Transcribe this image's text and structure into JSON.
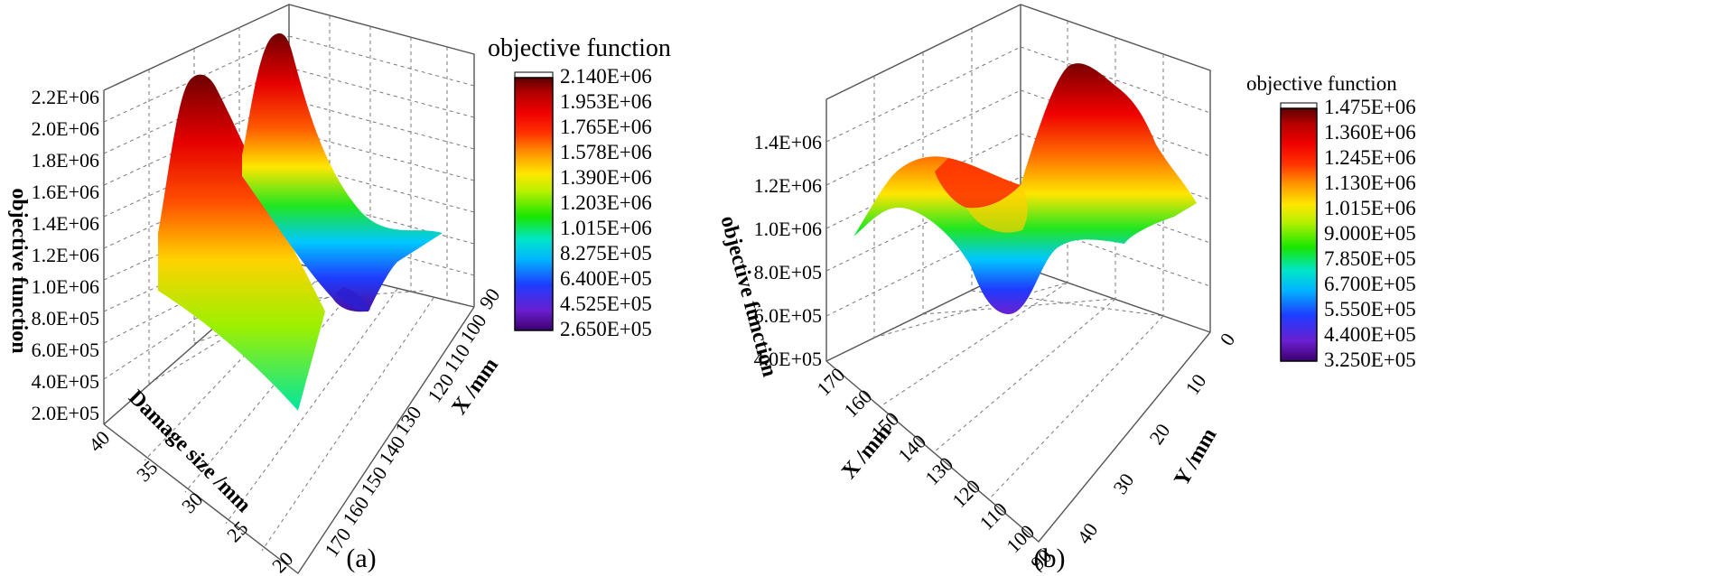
{
  "chart_data": [
    {
      "type": "surface",
      "caption": "(a)",
      "zlabel": "objective function",
      "xlabel": "X /mm",
      "ylabel": "Damage size /mm",
      "x_ticks": [
        "90",
        "100",
        "110",
        "120",
        "130",
        "140",
        "150",
        "160",
        "170"
      ],
      "y_ticks": [
        "40",
        "35",
        "30",
        "25",
        "20"
      ],
      "z_ticks": [
        "2.0E+05",
        "4.0E+05",
        "6.0E+05",
        "8.0E+05",
        "1.0E+06",
        "1.2E+06",
        "1.4E+06",
        "1.6E+06",
        "1.8E+06",
        "2.0E+06",
        "2.2E+06"
      ],
      "xlim": [
        90,
        170
      ],
      "ylim": [
        20,
        40
      ],
      "zlim": [
        200000,
        2200000
      ],
      "colorbar": {
        "title": "objective function",
        "ticks": [
          "2.140E+06",
          "1.953E+06",
          "1.765E+06",
          "1.578E+06",
          "1.390E+06",
          "1.203E+06",
          "1.015E+06",
          "8.275E+05",
          "6.400E+05",
          "4.525E+05",
          "2.650E+05"
        ],
        "range": [
          265000,
          2140000
        ]
      },
      "features": [
        {
          "x": 160,
          "y": 38,
          "z": 2050000,
          "kind": "peak"
        },
        {
          "x": 112,
          "y": 38,
          "z": 2140000,
          "kind": "peak"
        },
        {
          "x": 118,
          "y": 24,
          "z": 265000,
          "kind": "valley"
        }
      ],
      "grid": true
    },
    {
      "type": "surface",
      "caption": "(b)",
      "zlabel": "objective function",
      "xlabel": "X /mm",
      "ylabel": "Y /mm",
      "x_ticks": [
        "170",
        "160",
        "150",
        "140",
        "130",
        "120",
        "110",
        "100",
        "90"
      ],
      "y_ticks": [
        "0",
        "10",
        "20",
        "30",
        "40"
      ],
      "z_ticks": [
        "4.0E+05",
        "6.0E+05",
        "8.0E+05",
        "1.0E+06",
        "1.2E+06",
        "1.4E+06"
      ],
      "xlim": [
        90,
        170
      ],
      "ylim": [
        0,
        45
      ],
      "zlim": [
        400000,
        1500000
      ],
      "colorbar": {
        "title": "objective function",
        "ticks": [
          "1.475E+06",
          "1.360E+06",
          "1.245E+06",
          "1.130E+06",
          "1.015E+06",
          "9.000E+05",
          "7.850E+05",
          "6.700E+05",
          "5.550E+05",
          "4.400E+05",
          "3.250E+05"
        ],
        "range": [
          325000,
          1475000
        ]
      },
      "features": [
        {
          "x": 100,
          "y": 10,
          "z": 1475000,
          "kind": "peak"
        },
        {
          "x": 125,
          "y": 30,
          "z": 325000,
          "kind": "valley"
        }
      ],
      "grid": true
    }
  ]
}
